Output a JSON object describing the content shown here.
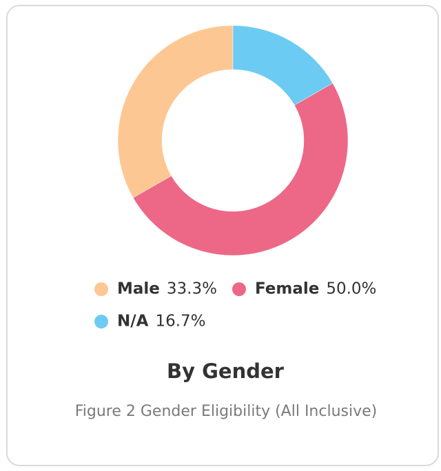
{
  "chart_data": {
    "type": "donut",
    "title": "By Gender",
    "caption": "Figure 2  Gender Eligibility (All Inclusive)",
    "categories": [
      "Male",
      "Female",
      "N/A"
    ],
    "values": [
      33.3,
      50.0,
      16.7
    ],
    "value_labels": [
      "33.3%",
      "50.0%",
      "16.7%"
    ],
    "colors": [
      "#fdc793",
      "#ec6886",
      "#6ccbf2"
    ],
    "legend": "bottom"
  }
}
